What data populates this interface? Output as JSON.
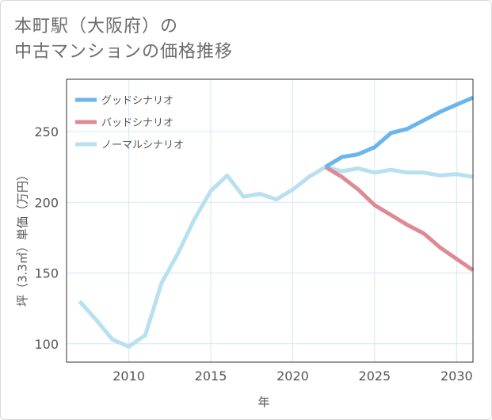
{
  "title_lines": [
    "本町駅（大阪府）の",
    "中古マンションの価格推移"
  ],
  "chart_data": {
    "type": "line",
    "title": "本町駅（大阪府）の中古マンションの価格推移",
    "xlabel": "年",
    "ylabel": "坪（3.3㎡）単価（万円）",
    "xlim": [
      2006.2,
      2031
    ],
    "ylim": [
      87,
      287
    ],
    "xticks": [
      2010,
      2015,
      2020,
      2025,
      2030
    ],
    "yticks": [
      100,
      150,
      200,
      250
    ],
    "legend_position": "top-left",
    "series": [
      {
        "name": "グッドシナリオ",
        "color": "#6cb4ec",
        "x": [
          2022,
          2023,
          2024,
          2025,
          2026,
          2027,
          2028,
          2029,
          2030,
          2031
        ],
        "values": [
          225,
          232,
          234,
          239,
          249,
          252,
          258,
          264,
          269,
          274
        ]
      },
      {
        "name": "バッドシナリオ",
        "color": "#dc8a93",
        "x": [
          2022,
          2023,
          2024,
          2025,
          2026,
          2027,
          2028,
          2029,
          2030,
          2031
        ],
        "values": [
          225,
          218,
          209,
          198,
          191,
          184,
          178,
          168,
          160,
          152
        ]
      },
      {
        "name": "ノーマルシナリオ",
        "color": "#b8e0f0",
        "x": [
          2007,
          2008,
          2009,
          2010,
          2011,
          2012,
          2013,
          2014,
          2015,
          2016,
          2017,
          2018,
          2019,
          2020,
          2021,
          2022,
          2023,
          2024,
          2025,
          2026,
          2027,
          2028,
          2029,
          2030,
          2031
        ],
        "values": [
          130,
          117,
          103,
          98,
          106,
          143,
          164,
          188,
          208,
          219,
          204,
          206,
          202,
          209,
          218,
          225,
          222,
          224,
          221,
          223,
          221,
          221,
          219,
          220,
          218
        ]
      }
    ]
  }
}
